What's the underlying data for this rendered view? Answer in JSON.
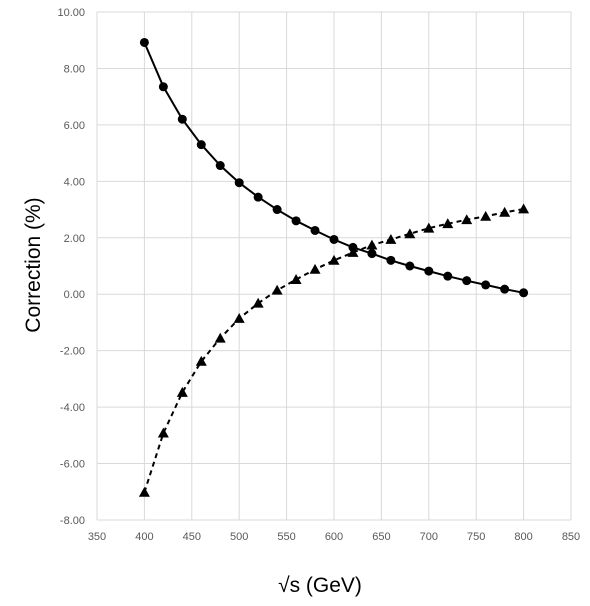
{
  "chart_data": {
    "type": "line",
    "xlabel": "√s (GeV)",
    "ylabel": "Correction (%)",
    "xlim": [
      350,
      850
    ],
    "ylim": [
      -8,
      10
    ],
    "x_ticks": [
      "350",
      "400",
      "450",
      "500",
      "550",
      "600",
      "650",
      "700",
      "750",
      "800",
      "850"
    ],
    "y_ticks": [
      "10.00",
      "8.00",
      "6.00",
      "4.00",
      "2.00",
      "0.00",
      "-2.00",
      "-4.00",
      "-6.00",
      "-8.00"
    ],
    "grid": true,
    "legend": "none",
    "x": [
      400,
      420,
      440,
      460,
      480,
      500,
      520,
      540,
      560,
      580,
      600,
      620,
      640,
      660,
      680,
      700,
      720,
      740,
      760,
      780,
      800
    ],
    "series": [
      {
        "marker": "circle",
        "line_style": "solid",
        "color": "#000000",
        "values": [
          8.92,
          7.35,
          6.2,
          5.3,
          4.56,
          3.95,
          3.44,
          3.0,
          2.6,
          2.26,
          1.94,
          1.66,
          1.44,
          1.2,
          1.0,
          0.82,
          0.64,
          0.48,
          0.33,
          0.18,
          0.05
        ]
      },
      {
        "marker": "triangle",
        "line_style": "dashed",
        "color": "#000000",
        "values": [
          -7.02,
          -4.92,
          -3.48,
          -2.38,
          -1.56,
          -0.86,
          -0.32,
          0.14,
          0.52,
          0.88,
          1.2,
          1.48,
          1.74,
          1.94,
          2.14,
          2.34,
          2.5,
          2.64,
          2.76,
          2.9,
          3.02
        ]
      }
    ]
  }
}
